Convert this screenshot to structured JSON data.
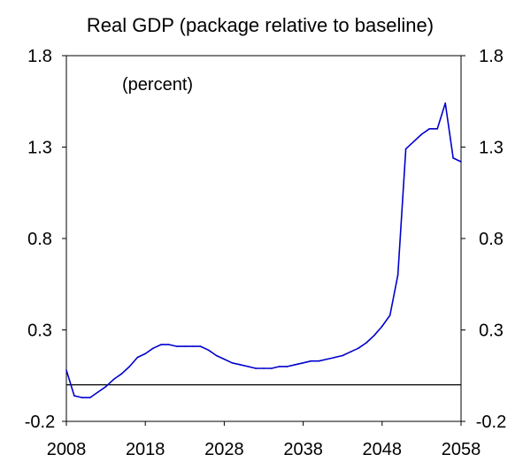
{
  "chart_data": {
    "type": "line",
    "title": "Real GDP (package relative to baseline)",
    "annotation": "(percent)",
    "xlabel": "",
    "ylabel": "",
    "xlim": [
      2008,
      2058
    ],
    "ylim": [
      -0.2,
      1.8
    ],
    "x_ticks": [
      2008,
      2018,
      2028,
      2038,
      2048,
      2058
    ],
    "x_tick_labels": [
      "2008",
      "2018",
      "2028",
      "2038",
      "2048",
      "2058"
    ],
    "y_ticks": [
      -0.2,
      0.3,
      0.8,
      1.3,
      1.8
    ],
    "y_tick_labels": [
      "-0.2",
      "0.3",
      "0.8",
      "1.3",
      "1.8"
    ],
    "reference_line": 0.0,
    "grid": false,
    "series": [
      {
        "color": "#0000cc",
        "x": [
          2008,
          2009,
          2010,
          2011,
          2012,
          2013,
          2014,
          2015,
          2016,
          2017,
          2018,
          2019,
          2020,
          2021,
          2022,
          2023,
          2024,
          2025,
          2026,
          2027,
          2028,
          2029,
          2030,
          2031,
          2032,
          2033,
          2034,
          2035,
          2036,
          2037,
          2038,
          2039,
          2040,
          2041,
          2042,
          2043,
          2044,
          2045,
          2046,
          2047,
          2048,
          2049,
          2050,
          2051,
          2052,
          2053,
          2054,
          2055,
          2056,
          2057,
          2058
        ],
        "values": [
          0.08,
          -0.06,
          -0.07,
          -0.07,
          -0.04,
          -0.01,
          0.03,
          0.06,
          0.1,
          0.15,
          0.17,
          0.2,
          0.22,
          0.22,
          0.21,
          0.21,
          0.21,
          0.21,
          0.19,
          0.16,
          0.14,
          0.12,
          0.11,
          0.1,
          0.09,
          0.09,
          0.09,
          0.1,
          0.1,
          0.11,
          0.12,
          0.13,
          0.13,
          0.14,
          0.15,
          0.16,
          0.18,
          0.2,
          0.23,
          0.27,
          0.32,
          0.38,
          0.6,
          1.29,
          1.33,
          1.37,
          1.4,
          1.4,
          1.54,
          1.24,
          1.22
        ]
      }
    ]
  }
}
